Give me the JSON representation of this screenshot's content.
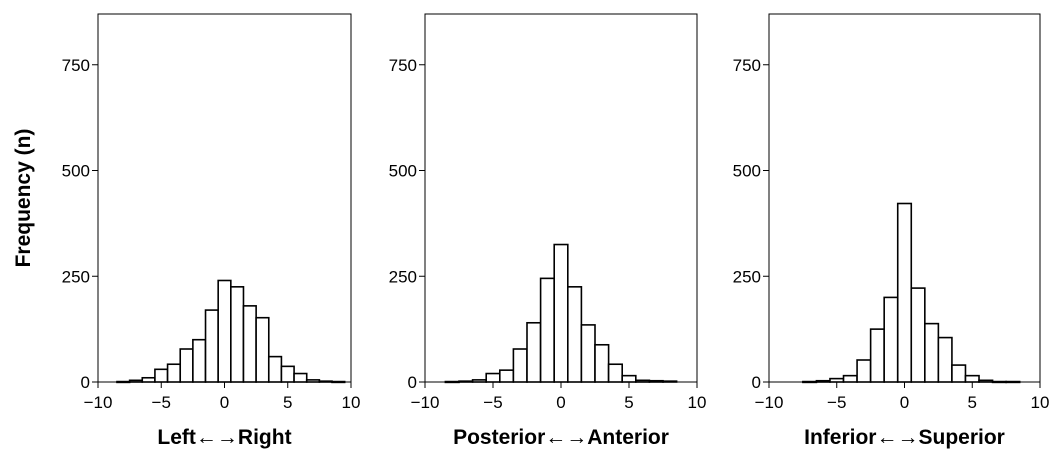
{
  "chart_data": [
    {
      "type": "bar",
      "xlabel": "Left←→Right",
      "ylabel": "Frequency (n)",
      "xlim": [
        -10,
        10
      ],
      "ylim": [
        0,
        870
      ],
      "xticks": [
        -10,
        -5,
        0,
        5,
        10
      ],
      "yticks": [
        0,
        250,
        500,
        750
      ],
      "bin_width": 1,
      "bin_centers": [
        -8,
        -7,
        -6,
        -5,
        -4,
        -3,
        -2,
        -1,
        0,
        1,
        2,
        3,
        4,
        5,
        6,
        7,
        8,
        9
      ],
      "values": [
        1,
        4,
        10,
        30,
        42,
        78,
        100,
        170,
        240,
        225,
        180,
        152,
        60,
        37,
        20,
        5,
        2,
        1
      ]
    },
    {
      "type": "bar",
      "xlabel": "Posterior←→Anterior",
      "ylabel": "",
      "xlim": [
        -10,
        10
      ],
      "ylim": [
        0,
        870
      ],
      "xticks": [
        -10,
        -5,
        0,
        5,
        10
      ],
      "yticks": [
        0,
        250,
        500,
        750
      ],
      "bin_width": 1,
      "bin_centers": [
        -8,
        -7,
        -6,
        -5,
        -4,
        -3,
        -2,
        -1,
        0,
        1,
        2,
        3,
        4,
        5,
        6,
        7,
        8
      ],
      "values": [
        1,
        2,
        5,
        20,
        28,
        78,
        140,
        245,
        325,
        225,
        135,
        88,
        42,
        15,
        4,
        3,
        2
      ]
    },
    {
      "type": "bar",
      "xlabel": "Inferior←→Superior",
      "ylabel": "",
      "xlim": [
        -10,
        10
      ],
      "ylim": [
        0,
        870
      ],
      "xticks": [
        -10,
        -5,
        0,
        5,
        10
      ],
      "yticks": [
        0,
        250,
        500,
        750
      ],
      "bin_width": 1,
      "bin_centers": [
        -7,
        -6,
        -5,
        -4,
        -3,
        -2,
        -1,
        0,
        1,
        2,
        3,
        4,
        5,
        6,
        7,
        8
      ],
      "values": [
        1,
        3,
        8,
        15,
        52,
        125,
        200,
        422,
        222,
        138,
        105,
        40,
        15,
        4,
        1,
        1
      ]
    }
  ]
}
